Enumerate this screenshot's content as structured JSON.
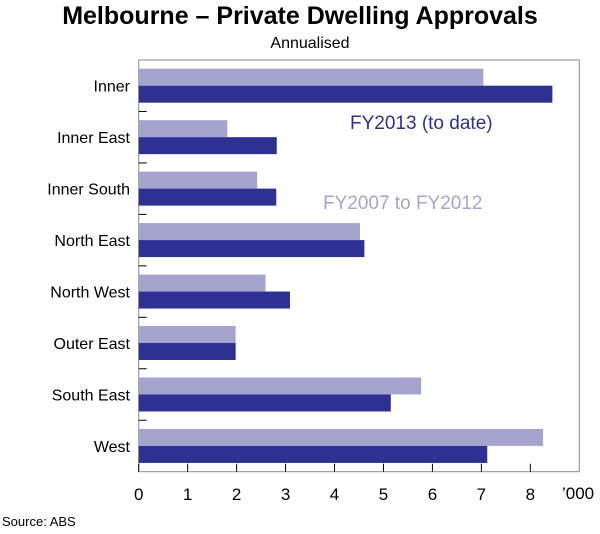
{
  "chart_data": {
    "type": "bar",
    "orientation": "horizontal",
    "title": "Melbourne – Private Dwelling Approvals",
    "subtitle": "Annualised",
    "categories": [
      "Inner",
      "Inner East",
      "Inner South",
      "North East",
      "North West",
      "Outer East",
      "South East",
      "West"
    ],
    "series": [
      {
        "name": "FY2007 to FY2012",
        "color": "#a5a4cf",
        "values": [
          7.04,
          1.81,
          2.42,
          4.52,
          2.59,
          1.98,
          5.77,
          8.26
        ]
      },
      {
        "name": "FY2013 (to date)",
        "color": "#2e3192",
        "values": [
          8.45,
          2.82,
          2.81,
          4.61,
          3.09,
          1.98,
          5.15,
          7.12
        ]
      }
    ],
    "xlim": [
      0,
      9
    ],
    "xticks": [
      "0",
      "1",
      "2",
      "3",
      "4",
      "5",
      "6",
      "7",
      "8"
    ],
    "xunit": "’000",
    "grid": false,
    "source": "Source: ABS"
  }
}
